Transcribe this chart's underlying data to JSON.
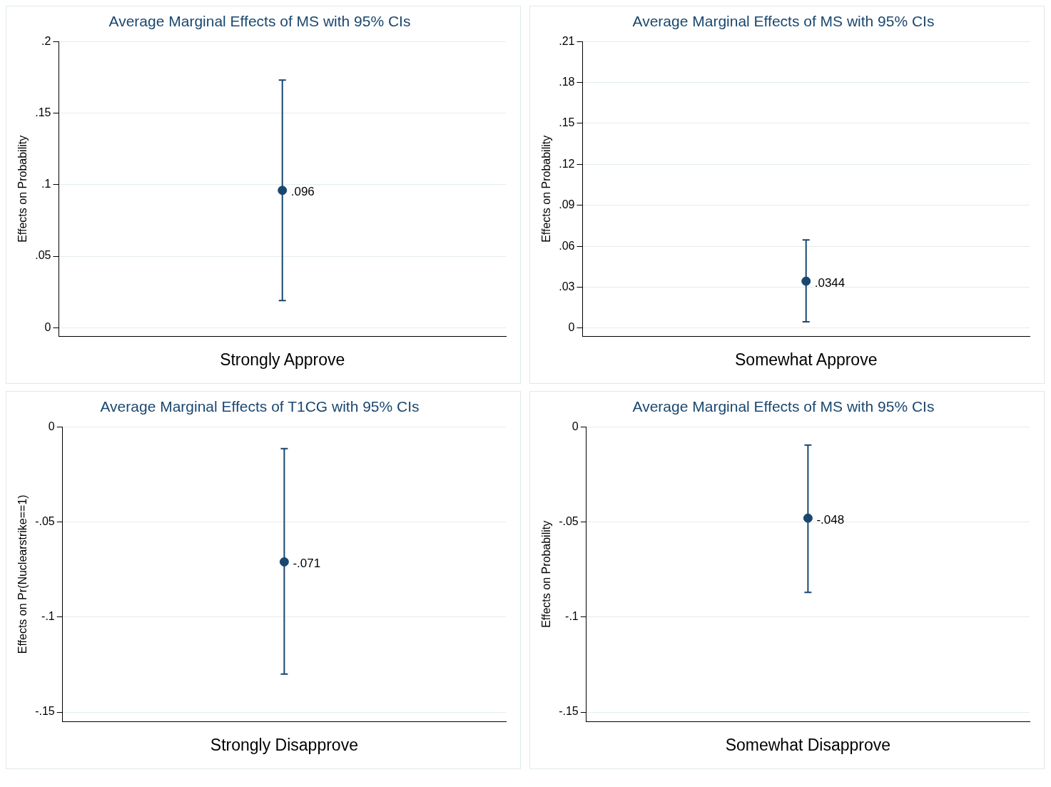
{
  "chart_data": [
    {
      "type": "scatter",
      "title": "Average Marginal Effects of MS with 95% CIs",
      "ylabel": "Effects on Probability",
      "categories": [
        "Strongly Approve"
      ],
      "values": [
        0.096
      ],
      "errors": [
        [
          0.019,
          0.173
        ]
      ],
      "value_labels": [
        ".096"
      ],
      "color": "#1a476f",
      "marker": "circle",
      "grid": "y",
      "ylim": [
        -0.006,
        0.2
      ],
      "yticks": [
        {
          "value": 0,
          "label": "0"
        },
        {
          "value": 0.05,
          "label": ".05"
        },
        {
          "value": 0.1,
          "label": ".1"
        },
        {
          "value": 0.15,
          "label": ".15"
        },
        {
          "value": 0.2,
          "label": ".2"
        }
      ]
    },
    {
      "type": "scatter",
      "title": "Average Marginal Effects of MS with 95% CIs",
      "ylabel": "Effects on Probability",
      "categories": [
        "Somewhat Approve"
      ],
      "values": [
        0.0344
      ],
      "errors": [
        [
          0.0046,
          0.0647
        ]
      ],
      "value_labels": [
        ".0344"
      ],
      "color": "#1a476f",
      "marker": "circle",
      "grid": "y",
      "ylim": [
        -0.006,
        0.21
      ],
      "yticks": [
        {
          "value": 0,
          "label": "0"
        },
        {
          "value": 0.03,
          "label": ".03"
        },
        {
          "value": 0.06,
          "label": ".06"
        },
        {
          "value": 0.09,
          "label": ".09"
        },
        {
          "value": 0.12,
          "label": ".12"
        },
        {
          "value": 0.15,
          "label": ".15"
        },
        {
          "value": 0.18,
          "label": ".18"
        },
        {
          "value": 0.21,
          "label": ".21"
        }
      ]
    },
    {
      "type": "scatter",
      "title": "Average Marginal Effects of T1CG with 95% CIs",
      "ylabel": "Effects on Pr(Nuclearstrike==1)",
      "categories": [
        "Strongly Disapprove"
      ],
      "values": [
        -0.071
      ],
      "errors": [
        [
          -0.13,
          -0.0115
        ]
      ],
      "value_labels": [
        "-.071"
      ],
      "color": "#1a476f",
      "marker": "circle",
      "grid": "y",
      "ylim": [
        -0.155,
        0
      ],
      "yticks": [
        {
          "value": -0.15,
          "label": "-.15"
        },
        {
          "value": -0.1,
          "label": "-.1"
        },
        {
          "value": -0.05,
          "label": "-.05"
        },
        {
          "value": 0,
          "label": "0"
        }
      ]
    },
    {
      "type": "scatter",
      "title": "Average Marginal Effects of MS with 95% CIs",
      "ylabel": "Effects on Probability",
      "categories": [
        "Somewhat Disapprove"
      ],
      "values": [
        -0.048
      ],
      "errors": [
        [
          -0.087,
          -0.0096
        ]
      ],
      "value_labels": [
        "-.048"
      ],
      "color": "#1a476f",
      "marker": "circle",
      "grid": "y",
      "ylim": [
        -0.155,
        0
      ],
      "yticks": [
        {
          "value": -0.15,
          "label": "-.15"
        },
        {
          "value": -0.1,
          "label": "-.1"
        },
        {
          "value": -0.05,
          "label": "-.05"
        },
        {
          "value": 0,
          "label": "0"
        }
      ]
    }
  ]
}
